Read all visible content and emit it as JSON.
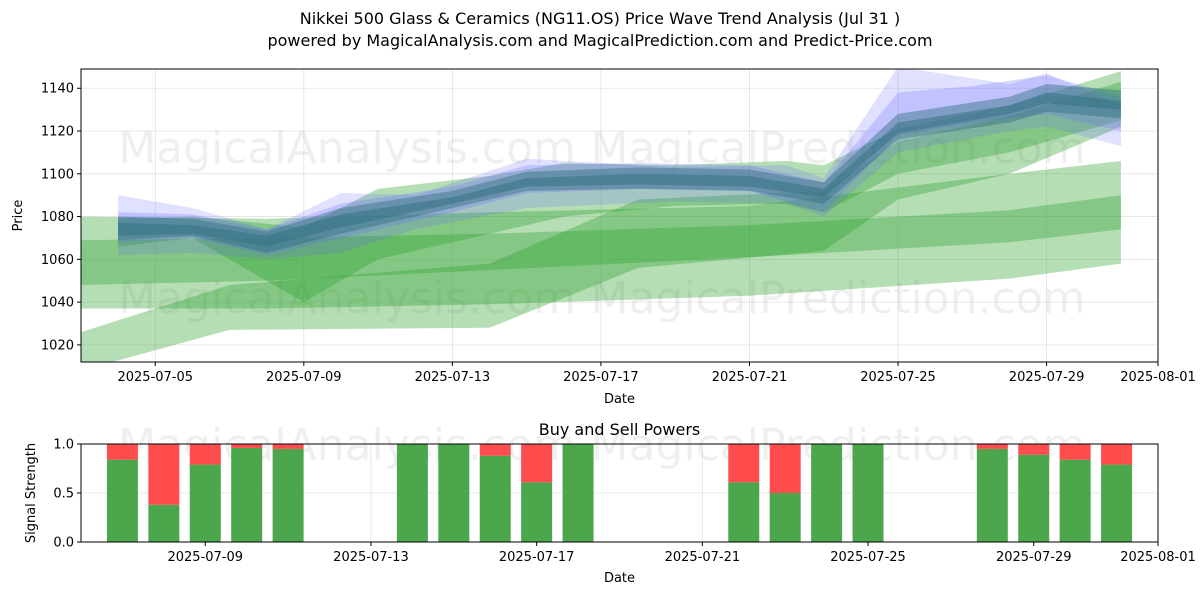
{
  "header": {
    "title": "Nikkei 500 Glass & Ceramics (NG11.OS) Price Wave Trend Analysis (Jul 31 )",
    "subtitle": "powered by MagicalAnalysis.com and MagicalPrediction.com and Predict-Price.com"
  },
  "watermarks": [
    "MagicalAnalysis.com",
    "MagicalPrediction.com"
  ],
  "colors": {
    "green_band": "#2ca02c",
    "blue_band": "#6666ff",
    "teal_band": "#2f6f7f",
    "buy": "#4ca64c",
    "sell": "#ff4c4c"
  },
  "chart_data": [
    {
      "type": "area",
      "title": "",
      "xlabel": "Date",
      "ylabel": "Price",
      "xlim": [
        "2025-07-03",
        "2025-08-01"
      ],
      "ylim": [
        1012,
        1149
      ],
      "grid": true,
      "x_ticks": [
        "2025-07-05",
        "2025-07-09",
        "2025-07-13",
        "2025-07-17",
        "2025-07-21",
        "2025-07-25",
        "2025-07-29",
        "2025-08-01"
      ],
      "y_ticks": [
        1020,
        1040,
        1060,
        1080,
        1100,
        1120,
        1140
      ],
      "series": [
        {
          "kind": "band",
          "color": "green",
          "opacity": 0.35,
          "x": [
            "2025-07-03",
            "2025-07-08",
            "2025-07-14",
            "2025-07-21",
            "2025-07-28",
            "2025-07-31"
          ],
          "upper": [
            1080,
            1079,
            1082,
            1085,
            1100,
            1106
          ],
          "lower": [
            1037,
            1037,
            1039,
            1043,
            1051,
            1058
          ]
        },
        {
          "kind": "band",
          "color": "green",
          "opacity": 0.35,
          "x": [
            "2025-07-03",
            "2025-07-08",
            "2025-07-14",
            "2025-07-21",
            "2025-07-28",
            "2025-07-31"
          ],
          "upper": [
            1069,
            1070,
            1072,
            1076,
            1083,
            1090
          ],
          "lower": [
            1048,
            1050,
            1055,
            1061,
            1068,
            1074
          ]
        },
        {
          "kind": "band",
          "color": "green",
          "opacity": 0.35,
          "x": [
            "2025-07-03",
            "2025-07-07",
            "2025-07-14",
            "2025-07-18",
            "2025-07-23",
            "2025-07-25",
            "2025-07-28",
            "2025-07-31"
          ],
          "upper": [
            1026,
            1048,
            1058,
            1088,
            1092,
            1115,
            1127,
            1143
          ],
          "lower": [
            1008,
            1027,
            1028,
            1056,
            1064,
            1088,
            1100,
            1122
          ]
        },
        {
          "kind": "band",
          "color": "green",
          "opacity": 0.35,
          "x": [
            "2025-07-04",
            "2025-07-06",
            "2025-07-09",
            "2025-07-11",
            "2025-07-14",
            "2025-07-16",
            "2025-07-19",
            "2025-07-22",
            "2025-07-23",
            "2025-07-25",
            "2025-07-28",
            "2025-07-31"
          ],
          "upper": [
            1079,
            1080,
            1075,
            1093,
            1099,
            1105,
            1104,
            1106,
            1104,
            1121,
            1132,
            1148
          ],
          "lower": [
            1066,
            1070,
            1040,
            1060,
            1072,
            1080,
            1085,
            1086,
            1082,
            1100,
            1110,
            1125
          ]
        },
        {
          "kind": "band",
          "color": "blue",
          "opacity": 0.2,
          "x": [
            "2025-07-04",
            "2025-07-06",
            "2025-07-08",
            "2025-07-10",
            "2025-07-12",
            "2025-07-15",
            "2025-07-19",
            "2025-07-22",
            "2025-07-23",
            "2025-07-25",
            "2025-07-28",
            "2025-07-29",
            "2025-07-31"
          ],
          "upper": [
            1090,
            1084,
            1074,
            1091,
            1090,
            1107,
            1103,
            1104,
            1098,
            1150,
            1142,
            1147,
            1132
          ],
          "lower": [
            1062,
            1063,
            1060,
            1063,
            1074,
            1084,
            1087,
            1086,
            1080,
            1110,
            1120,
            1122,
            1113
          ]
        },
        {
          "kind": "band",
          "color": "blue",
          "opacity": 0.25,
          "x": [
            "2025-07-04",
            "2025-07-06",
            "2025-07-08",
            "2025-07-10",
            "2025-07-13",
            "2025-07-15",
            "2025-07-18",
            "2025-07-21",
            "2025-07-23",
            "2025-07-25",
            "2025-07-27",
            "2025-07-29",
            "2025-07-31"
          ],
          "upper": [
            1082,
            1081,
            1074,
            1086,
            1094,
            1104,
            1105,
            1104,
            1096,
            1138,
            1141,
            1146,
            1136
          ],
          "lower": [
            1068,
            1070,
            1062,
            1070,
            1082,
            1091,
            1093,
            1092,
            1082,
            1118,
            1124,
            1128,
            1120
          ]
        },
        {
          "kind": "band",
          "color": "teal",
          "opacity": 0.45,
          "x": [
            "2025-07-04",
            "2025-07-06",
            "2025-07-08",
            "2025-07-10",
            "2025-07-13",
            "2025-07-15",
            "2025-07-18",
            "2025-07-21",
            "2025-07-23",
            "2025-07-25",
            "2025-07-28",
            "2025-07-29",
            "2025-07-31"
          ],
          "upper": [
            1080,
            1079,
            1073,
            1084,
            1092,
            1101,
            1103,
            1102,
            1096,
            1128,
            1136,
            1142,
            1139
          ],
          "lower": [
            1069,
            1071,
            1063,
            1072,
            1084,
            1092,
            1093,
            1092,
            1086,
            1116,
            1124,
            1129,
            1126
          ]
        },
        {
          "kind": "band",
          "color": "teal",
          "opacity": 0.5,
          "x": [
            "2025-07-04",
            "2025-07-06",
            "2025-07-08",
            "2025-07-10",
            "2025-07-13",
            "2025-07-15",
            "2025-07-18",
            "2025-07-21",
            "2025-07-23",
            "2025-07-25",
            "2025-07-28",
            "2025-07-29",
            "2025-07-31"
          ],
          "upper": [
            1077,
            1076,
            1071,
            1081,
            1089,
            1098,
            1100,
            1099,
            1093,
            1124,
            1132,
            1138,
            1134
          ],
          "lower": [
            1071,
            1072,
            1066,
            1075,
            1086,
            1094,
            1095,
            1094,
            1089,
            1119,
            1128,
            1133,
            1130
          ]
        }
      ]
    },
    {
      "type": "bar",
      "title": "Buy and Sell Powers",
      "xlabel": "Date",
      "ylabel": "Signal Strength",
      "xlim": [
        "2025-07-06",
        "2025-08-01"
      ],
      "ylim": [
        0,
        1
      ],
      "grid": true,
      "x_ticks": [
        "2025-07-09",
        "2025-07-13",
        "2025-07-17",
        "2025-07-21",
        "2025-07-25",
        "2025-07-29",
        "2025-08-01"
      ],
      "y_ticks": [
        0.0,
        0.5,
        1.0
      ],
      "dates": [
        "2025-07-07",
        "2025-07-08",
        "2025-07-09",
        "2025-07-10",
        "2025-07-11",
        "2025-07-14",
        "2025-07-15",
        "2025-07-16",
        "2025-07-17",
        "2025-07-18",
        "2025-07-22",
        "2025-07-23",
        "2025-07-24",
        "2025-07-25",
        "2025-07-28",
        "2025-07-29",
        "2025-07-30",
        "2025-07-31"
      ],
      "series": [
        {
          "kind": "buy",
          "values": [
            0.84,
            0.38,
            0.79,
            0.96,
            0.95,
            1.0,
            1.0,
            0.88,
            0.61,
            1.0,
            0.61,
            0.5,
            1.0,
            1.0,
            0.95,
            0.89,
            0.84,
            0.79
          ]
        },
        {
          "kind": "sell",
          "values": [
            0.16,
            0.62,
            0.21,
            0.04,
            0.05,
            0.0,
            0.0,
            0.12,
            0.39,
            0.0,
            0.39,
            0.5,
            0.0,
            0.0,
            0.05,
            0.11,
            0.16,
            0.21
          ]
        }
      ]
    }
  ]
}
